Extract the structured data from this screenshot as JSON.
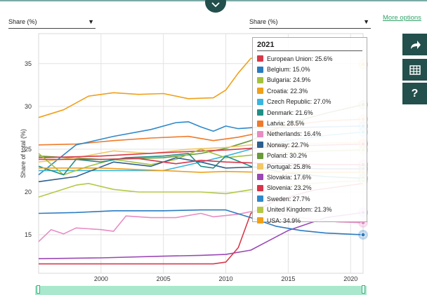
{
  "header": {
    "left_dropdown": "Share (%)",
    "right_dropdown": "Share (%)",
    "more_options": "More options"
  },
  "side_buttons": [
    "share-icon",
    "table-icon",
    "help-icon"
  ],
  "help_glyph": "?",
  "tooltip": {
    "year": "2021",
    "rows": [
      {
        "label": "European Union: 25.6%",
        "color": "#d63a4a"
      },
      {
        "label": "Belgium: 15.0%",
        "color": "#2b7bc0"
      },
      {
        "label": "Bulgaria: 24.9%",
        "color": "#a5c23e"
      },
      {
        "label": "Croatia: 22.3%",
        "color": "#f0a019"
      },
      {
        "label": "Czech Republic: 27.0%",
        "color": "#38b6e0"
      },
      {
        "label": "Denmark: 21.6%",
        "color": "#1f8f86"
      },
      {
        "label": "Latvia: 28.5%",
        "color": "#f07a2a"
      },
      {
        "label": "Netherlands: 16.4%",
        "color": "#e88cc4"
      },
      {
        "label": "Norway: 22.7%",
        "color": "#2f5f8f"
      },
      {
        "label": "Poland: 30.2%",
        "color": "#6a9a3a"
      },
      {
        "label": "Portugal: 25.8%",
        "color": "#f2c766"
      },
      {
        "label": "Slovakia: 17.6%",
        "color": "#9b48b5"
      },
      {
        "label": "Slovenia: 23.2%",
        "color": "#d8354a"
      },
      {
        "label": "Sweden: 27.7%",
        "color": "#2f89c9"
      },
      {
        "label": "United Kingdom: 21.3%",
        "color": "#b5c845"
      },
      {
        "label": "USA: 34.9%",
        "color": "#f0a019"
      }
    ]
  },
  "chart_data": {
    "type": "line",
    "ylabel": "Share of total (%)",
    "xlabel": "",
    "x_ticks": [
      2000,
      2005,
      2010,
      2015,
      2020
    ],
    "y_ticks": [
      15,
      20,
      25,
      30,
      35
    ],
    "xlim": [
      1995,
      2021
    ],
    "ylim": [
      10.5,
      38.5
    ],
    "grid": true,
    "series": [
      {
        "name": "USA",
        "color": "#f0a019",
        "x": [
          1995,
          1997,
          1999,
          2001,
          2003,
          2005,
          2007,
          2009,
          2010,
          2011,
          2012,
          2013
        ],
        "y": [
          28.7,
          29.6,
          31.2,
          31.6,
          31.4,
          31.5,
          30.9,
          31.0,
          31.9,
          33.9,
          35.6,
          35.9
        ]
      },
      {
        "name": "Poland",
        "color": "#6a9a3a",
        "x": [
          1995,
          2000,
          2005,
          2008,
          2010,
          2012,
          2015,
          2018,
          2021
        ],
        "y": [
          24.2,
          23.8,
          24.0,
          24.5,
          25.1,
          26.0,
          28.0,
          29.2,
          30.2
        ]
      },
      {
        "name": "Latvia",
        "color": "#f07a2a",
        "x": [
          1995,
          1998,
          2001,
          2004,
          2007,
          2009,
          2011,
          2013,
          2015,
          2018,
          2021
        ],
        "y": [
          25.5,
          25.6,
          26.0,
          26.3,
          26.5,
          26.0,
          26.4,
          27.0,
          27.8,
          28.3,
          28.5
        ]
      },
      {
        "name": "Sweden",
        "color": "#2f89c9",
        "x": [
          1995,
          1998,
          2001,
          2004,
          2006,
          2007,
          2008,
          2009,
          2010,
          2011,
          2013,
          2015,
          2018,
          2021
        ],
        "y": [
          22.0,
          25.5,
          26.5,
          27.3,
          28.1,
          28.2,
          27.6,
          27.1,
          27.7,
          27.4,
          27.6,
          27.5,
          27.6,
          27.7
        ]
      },
      {
        "name": "Czech Republic",
        "color": "#38b6e0",
        "x": [
          1995,
          2000,
          2005,
          2008,
          2010,
          2012,
          2015,
          2018,
          2021
        ],
        "y": [
          22.5,
          22.5,
          22.5,
          23.5,
          24.2,
          25.0,
          26.0,
          26.6,
          27.0
        ]
      },
      {
        "name": "Portugal",
        "color": "#f2c766",
        "x": [
          1995,
          1998,
          2001,
          2004,
          2007,
          2010,
          2012,
          2015,
          2018,
          2021
        ],
        "y": [
          23.5,
          24.0,
          24.8,
          24.5,
          25.0,
          25.2,
          25.5,
          25.6,
          25.7,
          25.8
        ]
      },
      {
        "name": "European Union",
        "color": "#d63a4a",
        "x": [
          1995,
          2000,
          2005,
          2010,
          2013,
          2016,
          2021
        ],
        "y": [
          24.0,
          24.2,
          24.6,
          24.9,
          25.2,
          25.4,
          25.6
        ]
      },
      {
        "name": "Bulgaria",
        "color": "#a5c23e",
        "x": [
          1995,
          1997,
          1999,
          2001,
          2004,
          2006,
          2008,
          2010,
          2012,
          2015,
          2018,
          2021
        ],
        "y": [
          24.5,
          22.0,
          23.0,
          23.8,
          23.2,
          23.8,
          25.0,
          24.0,
          24.3,
          24.6,
          24.8,
          24.9
        ]
      },
      {
        "name": "Denmark",
        "color": "#1f8f86",
        "x": [
          1995,
          1997,
          1998,
          2000,
          2002,
          2005,
          2007,
          2008,
          2009,
          2010,
          2012,
          2015,
          2018,
          2021
        ],
        "y": [
          23.0,
          22.0,
          23.8,
          23.5,
          24.0,
          24.2,
          24.5,
          23.0,
          22.8,
          24.2,
          23.0,
          22.2,
          21.8,
          21.6
        ]
      },
      {
        "name": "Norway",
        "color": "#2f5f8f",
        "x": [
          1995,
          1998,
          2001,
          2004,
          2006,
          2008,
          2010,
          2012,
          2015,
          2018,
          2021
        ],
        "y": [
          21.2,
          21.8,
          23.5,
          23.0,
          24.0,
          23.5,
          22.8,
          22.9,
          22.8,
          22.7,
          22.7
        ]
      },
      {
        "name": "Slovenia",
        "color": "#d8354a",
        "x": [
          1995,
          2000,
          2003,
          2006,
          2008,
          2010,
          2012,
          2015,
          2018,
          2021
        ],
        "y": [
          23.8,
          23.8,
          23.9,
          23.3,
          23.7,
          23.5,
          23.4,
          23.3,
          23.2,
          23.2
        ]
      },
      {
        "name": "Croatia",
        "color": "#f0a019",
        "x": [
          1995,
          2000,
          2005,
          2008,
          2010,
          2013,
          2016,
          2021
        ],
        "y": [
          22.8,
          22.8,
          22.5,
          22.3,
          22.4,
          22.3,
          22.3,
          22.3
        ]
      },
      {
        "name": "United Kingdom",
        "color": "#b5c845",
        "x": [
          1995,
          1998,
          1999,
          2001,
          2003,
          2006,
          2008,
          2010,
          2013,
          2016,
          2019,
          2021
        ],
        "y": [
          19.4,
          20.8,
          21.0,
          20.3,
          20.0,
          20.0,
          20.0,
          19.8,
          20.5,
          20.9,
          21.2,
          21.3
        ]
      },
      {
        "name": "Slovakia",
        "color": "#9b48b5",
        "x": [
          1995,
          2000,
          2005,
          2008,
          2010,
          2012,
          2015,
          2018,
          2021
        ],
        "y": [
          12.2,
          12.3,
          12.5,
          12.6,
          12.7,
          13.2,
          15.5,
          17.0,
          17.6
        ]
      },
      {
        "name": "Netherlands",
        "color": "#e88cc4",
        "x": [
          1995,
          1996,
          1997,
          1998,
          2000,
          2001,
          2002,
          2004,
          2006,
          2008,
          2009,
          2011,
          2013,
          2015,
          2017,
          2019,
          2021
        ],
        "y": [
          14.2,
          15.6,
          15.1,
          15.8,
          15.6,
          15.4,
          17.2,
          17.0,
          17.0,
          17.5,
          17.1,
          17.4,
          18.0,
          17.2,
          16.8,
          16.5,
          16.4
        ]
      },
      {
        "name": "Belgium",
        "color": "#2b7bc0",
        "x": [
          1995,
          1998,
          2001,
          2005,
          2008,
          2010,
          2012,
          2014,
          2016,
          2018,
          2021
        ],
        "y": [
          17.5,
          17.6,
          17.8,
          17.8,
          17.9,
          17.9,
          17.0,
          16.0,
          15.5,
          15.2,
          15.0
        ]
      },
      {
        "name": "European Union",
        "color": "#d63a4a",
        "x": [
          1995,
          2000,
          2005,
          2009,
          2010,
          2011,
          2012,
          2014,
          2017,
          2021
        ],
        "y": [
          11.6,
          11.6,
          11.6,
          11.6,
          11.8,
          13.5,
          17.5,
          19.0,
          20.2,
          21.0
        ]
      }
    ],
    "end_markers": [
      {
        "color": "#f0a019",
        "y": 34.9
      },
      {
        "color": "#6a9a3a",
        "y": 30.2
      },
      {
        "color": "#f07a2a",
        "y": 28.5
      },
      {
        "color": "#2f89c9",
        "y": 27.7
      },
      {
        "color": "#38b6e0",
        "y": 27.0
      },
      {
        "color": "#f2c766",
        "y": 25.8
      },
      {
        "color": "#d63a4a",
        "y": 25.6
      },
      {
        "color": "#a5c23e",
        "y": 24.9
      },
      {
        "color": "#d8354a",
        "y": 23.2
      },
      {
        "color": "#2f5f8f",
        "y": 22.7
      },
      {
        "color": "#f0a019",
        "y": 22.3
      },
      {
        "color": "#1f8f86",
        "y": 21.6
      },
      {
        "color": "#b5c845",
        "y": 21.3
      },
      {
        "color": "#9b48b5",
        "y": 17.6
      },
      {
        "color": "#e88cc4",
        "y": 16.4
      },
      {
        "color": "#2b7bc0",
        "y": 15.0
      }
    ]
  }
}
